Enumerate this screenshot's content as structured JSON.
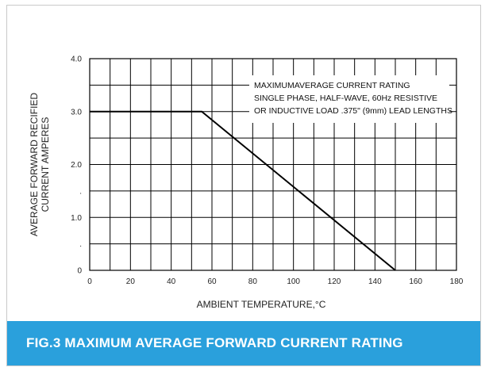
{
  "chart_data": {
    "type": "line",
    "caption": "FIG.3 MAXIMUM AVERAGE FORWARD CURRENT RATING",
    "xlabel": "AMBIENT TEMPERATURE,°C",
    "ylabel_line1": "AVERAGE FORWARD RECIFIED",
    "ylabel_line2": "CURRENT AMPERES",
    "annotation": [
      "MAXIMUMAVERAGE CURRENT RATING",
      "SINGLE PHASE, HALF-WAVE, 60Hz RESISTIVE",
      "OR INDUCTIVE LOAD .375\" (9mm) LEAD LENGTHS"
    ],
    "x_ticks": [
      "0",
      "20",
      "40",
      "60",
      "80",
      "100",
      "120",
      "140",
      "160",
      "180"
    ],
    "y_ticks": [
      {
        "value": 0,
        "label": "0"
      },
      {
        "value": 0.5,
        "label": "."
      },
      {
        "value": 1.0,
        "label": "1.0"
      },
      {
        "value": 1.5,
        "label": "."
      },
      {
        "value": 2.0,
        "label": "2.0"
      },
      {
        "value": 3.0,
        "label": "3.0"
      },
      {
        "value": 4.0,
        "label": "4.0"
      }
    ],
    "xlim": [
      0,
      180
    ],
    "ylim": [
      0,
      4
    ],
    "x_minor_step": 10,
    "y_minor_step": 0.5,
    "grid": true,
    "series": [
      {
        "x": [
          0,
          55,
          150
        ],
        "y": [
          3.0,
          3.0,
          0
        ]
      }
    ]
  },
  "colors": {
    "caption_bg": "#2aa0dc",
    "grid": "#000000",
    "line": "#000000"
  }
}
